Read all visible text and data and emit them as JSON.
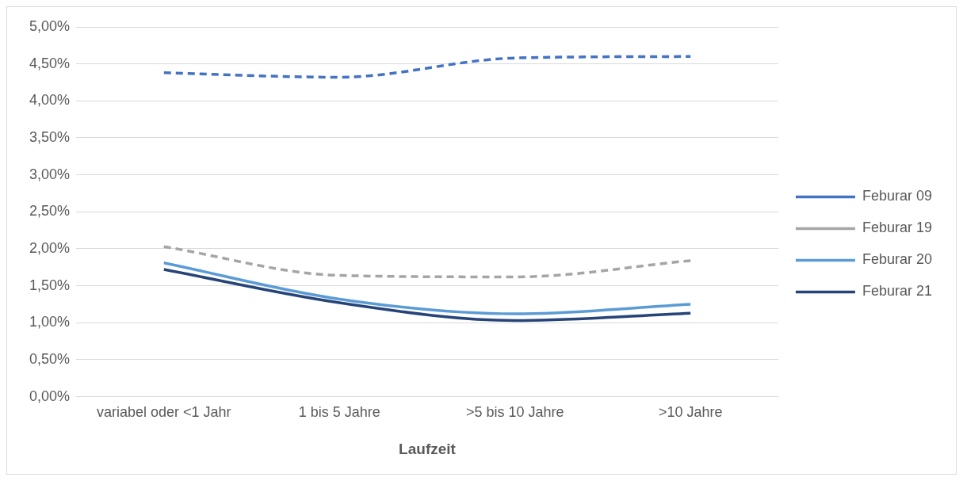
{
  "chart_data": {
    "type": "line",
    "xlabel": "Laufzeit",
    "categories": [
      "variabel oder <1 Jahr",
      "1 bis 5 Jahre",
      ">5 bis 10 Jahre",
      ">10 Jahre"
    ],
    "series": [
      {
        "name": "Feburar 09",
        "color": "#4472c4",
        "line_style": "dashed",
        "values": [
          4.38,
          4.32,
          4.58,
          4.6
        ]
      },
      {
        "name": "Feburar 19",
        "color": "#a5a5a5",
        "line_style": "dashed",
        "values": [
          2.03,
          1.64,
          1.62,
          1.84
        ]
      },
      {
        "name": "Feburar 20",
        "color": "#5b9bd5",
        "line_style": "solid",
        "values": [
          1.81,
          1.32,
          1.12,
          1.25
        ]
      },
      {
        "name": "Feburar 21",
        "color": "#264478",
        "line_style": "solid",
        "values": [
          1.72,
          1.27,
          1.03,
          1.13
        ]
      }
    ],
    "ylim": [
      0,
      5
    ],
    "yticks": [
      {
        "value": 0,
        "label": "0,00%"
      },
      {
        "value": 0.5,
        "label": "0,50%"
      },
      {
        "value": 1,
        "label": "1,00%"
      },
      {
        "value": 1.5,
        "label": "1,50%"
      },
      {
        "value": 2,
        "label": "2,00%"
      },
      {
        "value": 2.5,
        "label": "2,50%"
      },
      {
        "value": 3,
        "label": "3,00%"
      },
      {
        "value": 3.5,
        "label": "3,50%"
      },
      {
        "value": 4,
        "label": "4,00%"
      },
      {
        "value": 4.5,
        "label": "4,50%"
      },
      {
        "value": 5,
        "label": "5,00%"
      }
    ],
    "grid": "y",
    "legend": "right",
    "marker": "none"
  }
}
